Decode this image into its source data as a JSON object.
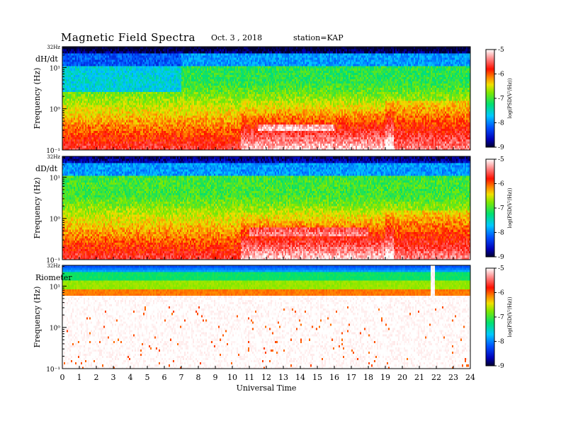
{
  "header": {
    "title": "Magnetic Field Spectra",
    "date": "Oct. 3 , 2018",
    "station": "station=KAP"
  },
  "chart_data": [
    {
      "type": "heatmap",
      "panel_label": "dH/dt",
      "ylabel": "Frequency (Hz)",
      "yscale": "log",
      "yticks": [
        "10⁻¹",
        "10⁰",
        "10¹",
        "32Hz"
      ],
      "ylim": [
        0.1,
        32
      ],
      "xlim": [
        0,
        24
      ],
      "colorbar": {
        "label": "log(PSD(V²/Hz))",
        "ticks": [
          "-5",
          "-6",
          "-7",
          "-8",
          "-9"
        ],
        "range": [
          -9,
          -5
        ]
      },
      "profile": {
        "noise_floor_log": -7.3,
        "top_band_log": -8.8,
        "event_start_ut": 10.5
      }
    },
    {
      "type": "heatmap",
      "panel_label": "dD/dt",
      "ylabel": "Frequency (Hz)",
      "yscale": "log",
      "yticks": [
        "10⁻¹",
        "10⁰",
        "10¹",
        "32Hz"
      ],
      "ylim": [
        0.1,
        32
      ],
      "xlim": [
        0,
        24
      ],
      "colorbar": {
        "label": "log(PSD(V²/Hz))",
        "ticks": [
          "-5",
          "-6",
          "-7",
          "-8",
          "-9"
        ],
        "range": [
          -9,
          -5
        ]
      },
      "profile": {
        "noise_floor_log": -7.0,
        "top_band_log": -8.6,
        "event_start_ut": 10.5
      }
    },
    {
      "type": "heatmap",
      "panel_label": "Riometer",
      "ylabel": "Frequency (Hz)",
      "yscale": "log",
      "yticks": [
        "10⁻¹",
        "10⁰",
        "10¹",
        "32Hz"
      ],
      "ylim": [
        0.1,
        32
      ],
      "xlim": [
        0,
        24
      ],
      "colorbar": {
        "label": "log(PSD(V²/Hz))",
        "ticks": [
          "-5",
          "-6",
          "-7",
          "-8",
          "-9"
        ],
        "range": [
          -9,
          -5
        ]
      },
      "profile": {
        "noise_floor_log": -5.0,
        "top_band_log": -7.5,
        "event_start_ut": 21.8
      }
    }
  ],
  "xaxis": {
    "label": "Universal Time",
    "ticks": [
      "0",
      "1",
      "2",
      "3",
      "4",
      "5",
      "6",
      "7",
      "8",
      "9",
      "10",
      "11",
      "12",
      "13",
      "14",
      "15",
      "16",
      "17",
      "18",
      "19",
      "20",
      "21",
      "22",
      "23",
      "24"
    ]
  },
  "colors": {
    "axis": "#000000",
    "background": "#ffffff"
  }
}
